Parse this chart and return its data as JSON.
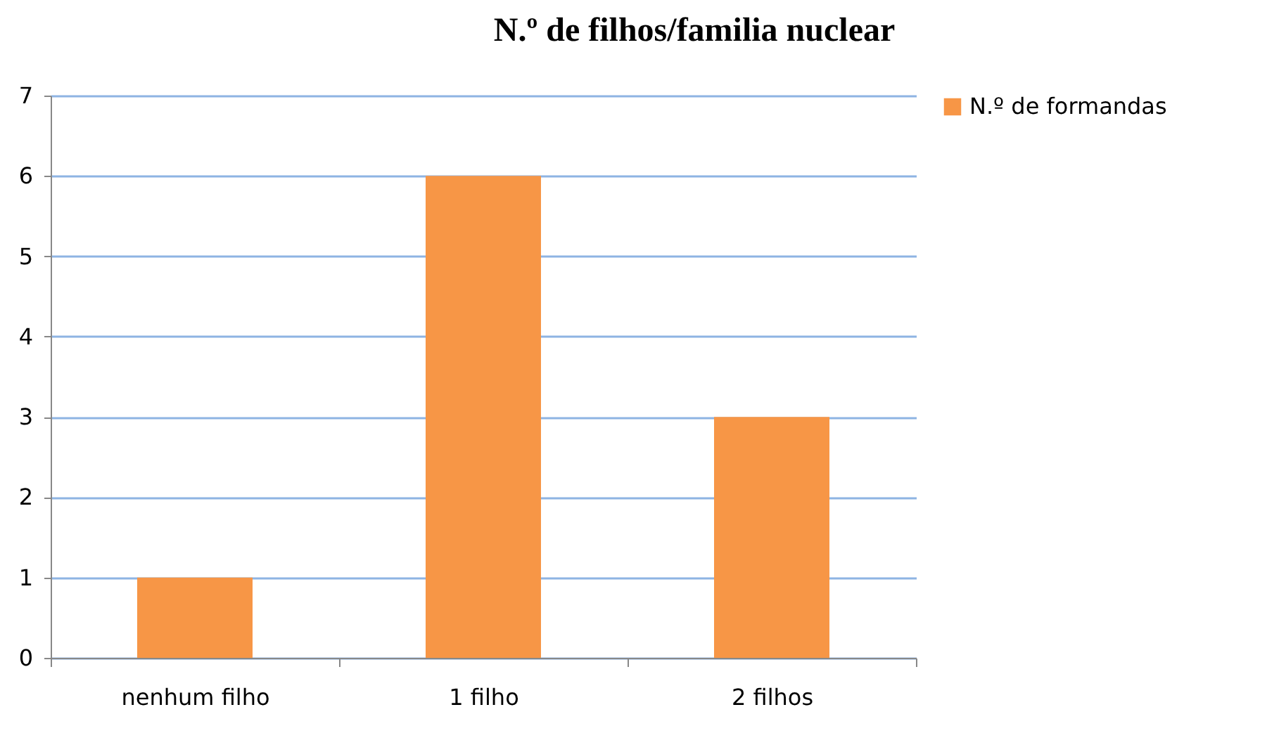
{
  "chart_data": {
    "type": "bar",
    "title": "N.º de filhos/familia nuclear",
    "categories": [
      "nenhum filho",
      "1 filho",
      "2 filhos"
    ],
    "series": [
      {
        "name": "N.º de formandas",
        "color": "#f79646",
        "values": [
          1,
          6,
          3
        ]
      }
    ],
    "ylim": [
      0,
      7
    ],
    "yticks": [
      0,
      1,
      2,
      3,
      4,
      5,
      6,
      7
    ],
    "grid": "y",
    "legend": "right"
  }
}
